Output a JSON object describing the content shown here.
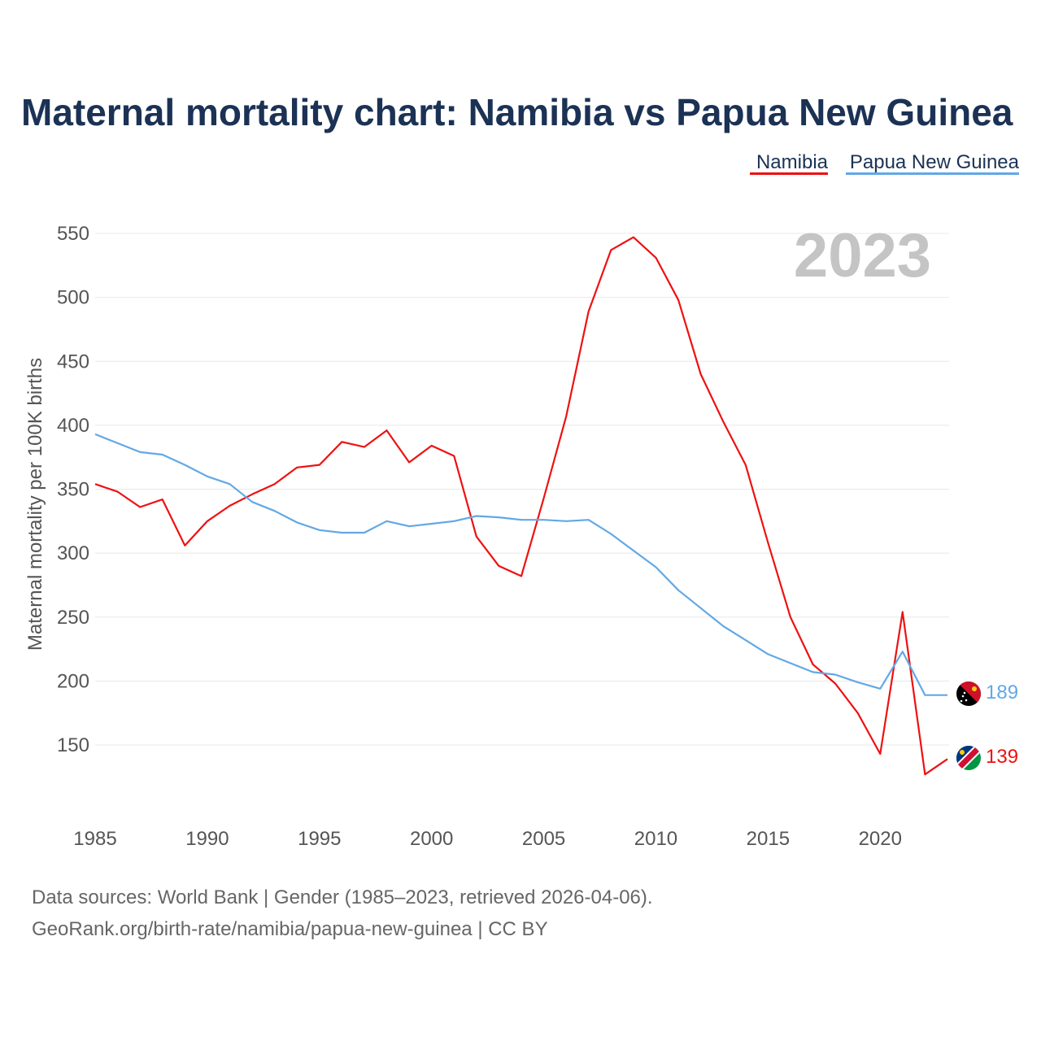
{
  "chart_data": {
    "type": "line",
    "title": "Maternal mortality chart: Namibia vs Papua New Guinea",
    "ylabel": "Maternal mortality per 100K births",
    "xlabel": "",
    "year_label": "2023",
    "x": [
      1985,
      1986,
      1987,
      1988,
      1989,
      1990,
      1991,
      1992,
      1993,
      1994,
      1995,
      1996,
      1997,
      1998,
      1999,
      2000,
      2001,
      2002,
      2003,
      2004,
      2005,
      2006,
      2007,
      2008,
      2009,
      2010,
      2011,
      2012,
      2013,
      2014,
      2015,
      2016,
      2017,
      2018,
      2019,
      2020,
      2021,
      2022,
      2023
    ],
    "xlim": [
      1985,
      2023
    ],
    "ylim": [
      105,
      560
    ],
    "x_ticks": [
      1985,
      1990,
      1995,
      2000,
      2005,
      2010,
      2015,
      2020
    ],
    "y_ticks": [
      150,
      200,
      250,
      300,
      350,
      400,
      450,
      500,
      550
    ],
    "series": [
      {
        "name": "Namibia",
        "color": "#ee1111",
        "end_label": "139",
        "values": [
          354,
          348,
          336,
          342,
          306,
          325,
          337,
          346,
          354,
          367,
          369,
          387,
          383,
          396,
          371,
          384,
          376,
          313,
          290,
          282,
          343,
          407,
          489,
          537,
          547,
          531,
          498,
          440,
          403,
          369,
          308,
          250,
          213,
          198,
          175,
          143,
          254,
          127,
          139
        ]
      },
      {
        "name": "Papua New Guinea",
        "color": "#62a8e5",
        "end_label": "189",
        "values": [
          393,
          386,
          379,
          377,
          369,
          360,
          354,
          340,
          333,
          324,
          318,
          316,
          316,
          325,
          321,
          323,
          325,
          329,
          328,
          326,
          326,
          325,
          326,
          315,
          302,
          289,
          271,
          257,
          243,
          232,
          221,
          214,
          207,
          205,
          199,
          194,
          223,
          189,
          189
        ]
      }
    ],
    "legend": [
      "Namibia",
      "Papua New Guinea"
    ],
    "legend_position": "top-right",
    "footer": {
      "line1": "Data sources: World Bank | Gender (1985–2023, retrieved 2026-04-06).",
      "line2": "GeoRank.org/birth-rate/namibia/papua-new-guinea | CC BY"
    }
  }
}
